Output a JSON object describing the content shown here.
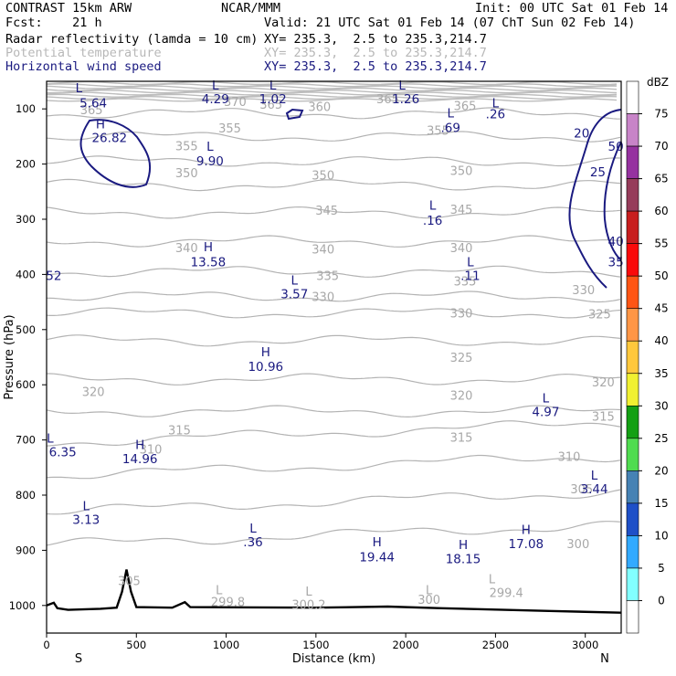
{
  "header": {
    "model": "CONTRAST 15km ARW",
    "org": "NCAR/MMM",
    "init": "Init: 00 UTC Sat 01 Feb 14",
    "fcst": "Fcst:    21 h",
    "valid": "Valid: 21 UTC Sat 01 Feb 14 (07 ChT Sun 02 Feb 14)",
    "fields": [
      {
        "name": "Radar reflectivity (lamda = 10 cm)",
        "xy": "XY= 235.3,  2.5 to 235.3,214.7",
        "color": "#000000"
      },
      {
        "name": "Potential temperature",
        "xy": "XY= 235.3,  2.5 to 235.3,214.7",
        "color": "#b8b8b8"
      },
      {
        "name": "Horizontal wind speed",
        "xy": "XY= 235.3,  2.5 to 235.3,214.7",
        "color": "#1a1a80"
      }
    ]
  },
  "chart_data": {
    "type": "contour-cross-section",
    "xlabel": "Distance (km)",
    "ylabel": "Pressure (hPa)",
    "xlim": [
      0,
      3200
    ],
    "ylim": [
      1050,
      50
    ],
    "x_ticks": [
      0,
      500,
      1000,
      1500,
      2000,
      2500,
      3000
    ],
    "y_ticks": [
      100,
      200,
      300,
      400,
      500,
      600,
      700,
      800,
      900,
      1000
    ],
    "end_labels": {
      "left": "S",
      "right": "N"
    },
    "theta_labels": [
      {
        "x": 250,
        "p": 110,
        "t": "365"
      },
      {
        "x": 1050,
        "p": 95,
        "t": "370"
      },
      {
        "x": 1250,
        "p": 100,
        "t": "365"
      },
      {
        "x": 1520,
        "p": 104,
        "t": "360"
      },
      {
        "x": 1900,
        "p": 90,
        "t": "365"
      },
      {
        "x": 2330,
        "p": 102,
        "t": "365"
      },
      {
        "x": 1020,
        "p": 143,
        "t": "355"
      },
      {
        "x": 2180,
        "p": 147,
        "t": "355"
      },
      {
        "x": 780,
        "p": 175,
        "t": "355"
      },
      {
        "x": 780,
        "p": 224,
        "t": "350"
      },
      {
        "x": 1540,
        "p": 228,
        "t": "350"
      },
      {
        "x": 2310,
        "p": 220,
        "t": "350"
      },
      {
        "x": 1560,
        "p": 292,
        "t": "345"
      },
      {
        "x": 2310,
        "p": 290,
        "t": "345"
      },
      {
        "x": 780,
        "p": 360,
        "t": "340"
      },
      {
        "x": 1540,
        "p": 362,
        "t": "340"
      },
      {
        "x": 2310,
        "p": 360,
        "t": "340"
      },
      {
        "x": 1565,
        "p": 410,
        "t": "335"
      },
      {
        "x": 2330,
        "p": 420,
        "t": "335"
      },
      {
        "x": 1540,
        "p": 448,
        "t": "330"
      },
      {
        "x": 2310,
        "p": 478,
        "t": "330"
      },
      {
        "x": 2990,
        "p": 436,
        "t": "330"
      },
      {
        "x": 3080,
        "p": 480,
        "t": "325"
      },
      {
        "x": 2310,
        "p": 558,
        "t": "325"
      },
      {
        "x": 260,
        "p": 620,
        "t": "320"
      },
      {
        "x": 2310,
        "p": 627,
        "t": "320"
      },
      {
        "x": 3100,
        "p": 603,
        "t": "320"
      },
      {
        "x": 740,
        "p": 690,
        "t": "315"
      },
      {
        "x": 2310,
        "p": 703,
        "t": "315"
      },
      {
        "x": 3100,
        "p": 665,
        "t": "315"
      },
      {
        "x": 580,
        "p": 725,
        "t": "310"
      },
      {
        "x": 2910,
        "p": 738,
        "t": "310"
      },
      {
        "x": 2980,
        "p": 797,
        "t": "305"
      },
      {
        "x": 2960,
        "p": 896,
        "t": "300"
      },
      {
        "x": 460,
        "p": 963,
        "t": "305"
      },
      {
        "x": 1010,
        "p": 1001,
        "t": "299.8"
      },
      {
        "x": 1460,
        "p": 1006,
        "t": "300.2"
      },
      {
        "x": 2130,
        "p": 997,
        "t": "300"
      },
      {
        "x": 2560,
        "p": 985,
        "t": "299.4"
      }
    ],
    "theta_extremes": [
      {
        "x": 960,
        "p": 980,
        "t": "L"
      },
      {
        "x": 1460,
        "p": 982,
        "t": "L"
      },
      {
        "x": 2130,
        "p": 980,
        "t": "L"
      },
      {
        "x": 2480,
        "p": 960,
        "t": "L"
      }
    ],
    "wind_extremes": [
      {
        "x": 180,
        "p": 70,
        "t": "L"
      },
      {
        "x": 260,
        "p": 97,
        "t": "5.64"
      },
      {
        "x": 940,
        "p": 65,
        "t": "L"
      },
      {
        "x": 940,
        "p": 90,
        "t": "4.29"
      },
      {
        "x": 1260,
        "p": 65,
        "t": "L"
      },
      {
        "x": 1260,
        "p": 90,
        "t": "1.02"
      },
      {
        "x": 1980,
        "p": 65,
        "t": "L"
      },
      {
        "x": 2000,
        "p": 90,
        "t": "1.26"
      },
      {
        "x": 2500,
        "p": 97,
        "t": "L"
      },
      {
        "x": 2500,
        "p": 117,
        "t": ".26"
      },
      {
        "x": 2250,
        "p": 115,
        "t": "L"
      },
      {
        "x": 2250,
        "p": 142,
        "t": ".69"
      },
      {
        "x": 300,
        "p": 135,
        "t": "H"
      },
      {
        "x": 350,
        "p": 160,
        "t": "26.82"
      },
      {
        "x": 910,
        "p": 176,
        "t": "L"
      },
      {
        "x": 910,
        "p": 202,
        "t": "9.90"
      },
      {
        "x": 2150,
        "p": 283,
        "t": "L"
      },
      {
        "x": 2150,
        "p": 310,
        "t": ".16"
      },
      {
        "x": 900,
        "p": 358,
        "t": "H"
      },
      {
        "x": 900,
        "p": 385,
        "t": "13.58"
      },
      {
        "x": 2360,
        "p": 385,
        "t": "L"
      },
      {
        "x": 2360,
        "p": 410,
        "t": ".11"
      },
      {
        "x": 1380,
        "p": 418,
        "t": "L"
      },
      {
        "x": 1380,
        "p": 443,
        "t": "3.57"
      },
      {
        "x": 1220,
        "p": 548,
        "t": "H"
      },
      {
        "x": 1220,
        "p": 575,
        "t": "10.96"
      },
      {
        "x": 2780,
        "p": 632,
        "t": "L"
      },
      {
        "x": 2780,
        "p": 657,
        "t": "4.97"
      },
      {
        "x": 520,
        "p": 716,
        "t": "H"
      },
      {
        "x": 520,
        "p": 742,
        "t": "14.96"
      },
      {
        "x": 3050,
        "p": 772,
        "t": "L"
      },
      {
        "x": 3050,
        "p": 797,
        "t": "3.44"
      },
      {
        "x": 220,
        "p": 827,
        "t": "L"
      },
      {
        "x": 220,
        "p": 852,
        "t": "3.13"
      },
      {
        "x": 1150,
        "p": 868,
        "t": "L"
      },
      {
        "x": 1150,
        "p": 893,
        "t": ".36"
      },
      {
        "x": 2670,
        "p": 870,
        "t": "H"
      },
      {
        "x": 2670,
        "p": 896,
        "t": "17.08"
      },
      {
        "x": 1840,
        "p": 893,
        "t": "H"
      },
      {
        "x": 1840,
        "p": 920,
        "t": "19.44"
      },
      {
        "x": 2320,
        "p": 898,
        "t": "H"
      },
      {
        "x": 2320,
        "p": 923,
        "t": "18.15"
      },
      {
        "x": 40,
        "p": 410,
        "t": "52"
      },
      {
        "x": 20,
        "p": 705,
        "t": "L"
      },
      {
        "x": 90,
        "p": 730,
        "t": "6.35"
      }
    ],
    "wind_contour_labels": [
      {
        "x": 2980,
        "p": 152,
        "t": "20"
      },
      {
        "x": 3070,
        "p": 222,
        "t": "25"
      },
      {
        "x": 3170,
        "p": 176,
        "t": "50"
      },
      {
        "x": 3170,
        "p": 348,
        "t": "40"
      },
      {
        "x": 3170,
        "p": 385,
        "t": "35"
      }
    ],
    "wind_contour_levels": [
      20,
      25
    ],
    "colorbar": {
      "title": "dBZ",
      "labels": [
        "75",
        "70",
        "65",
        "60",
        "55",
        "50",
        "45",
        "40",
        "35",
        "30",
        "25",
        "20",
        "15",
        "10",
        "5",
        "0"
      ],
      "colors": [
        "#ffffff",
        "#c884c8",
        "#9632a0",
        "#963c5a",
        "#c81e1e",
        "#fa0a0a",
        "#ff5514",
        "#ff9646",
        "#ffc83c",
        "#f0f032",
        "#14a014",
        "#50dc50",
        "#4682b4",
        "#1e50c8",
        "#32aaff",
        "#82ffff",
        "#ffffff"
      ]
    },
    "terrain_color": "#000000"
  }
}
